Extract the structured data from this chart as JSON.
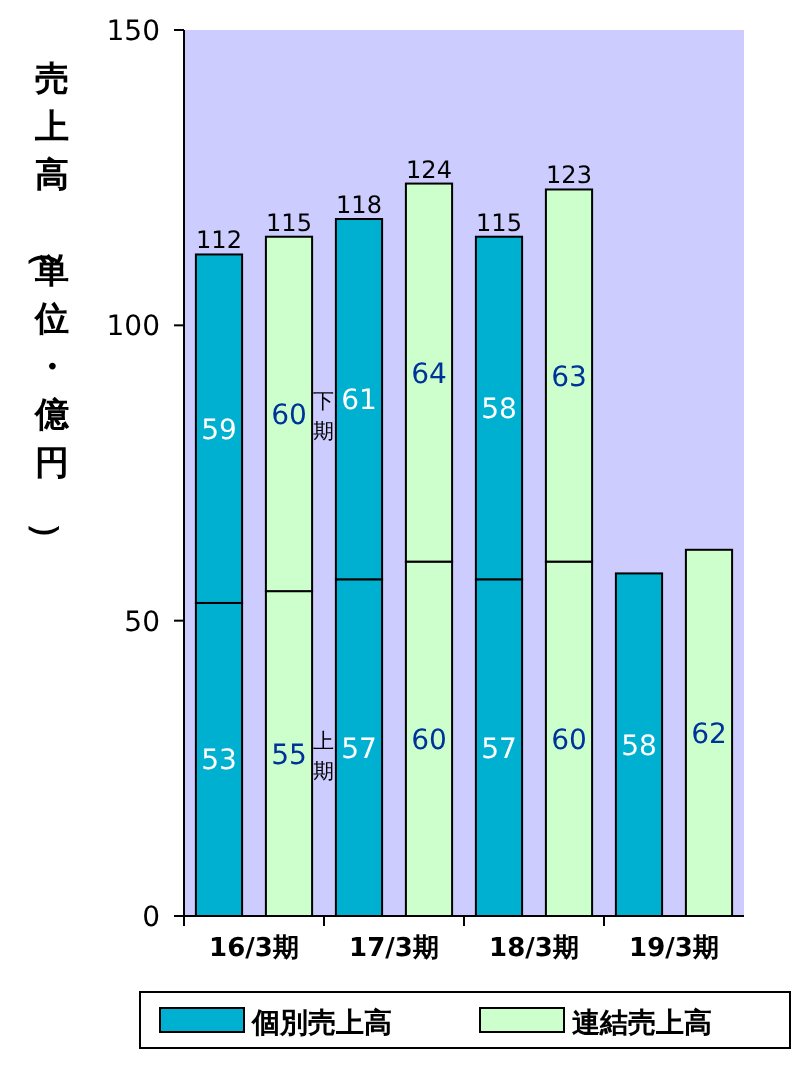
{
  "chart_data": {
    "type": "bar",
    "ylabel": "売上高（単位・億円）",
    "categories": [
      "16/3期",
      null,
      "17/3期",
      null,
      "18/3期",
      null,
      "19/3期",
      null
    ],
    "stacked": true,
    "series": [
      {
        "name": "個別売上高",
        "color": "#00b0d0",
        "values": [
          53,
          null,
          57,
          null,
          57,
          null,
          58,
          null
        ]
      },
      {
        "color": "#00b0d0",
        "values": [
          59,
          null,
          61,
          null,
          58,
          null,
          null,
          null
        ]
      },
      {
        "name": "連結売上高",
        "color": "#ccffcc",
        "values": [
          null,
          55,
          null,
          60,
          null,
          60,
          null,
          62
        ]
      },
      {
        "color": "#ccffcc",
        "values": [
          null,
          60,
          null,
          64,
          null,
          63,
          null,
          null
        ]
      }
    ],
    "totals": [
      "112",
      "115",
      "118",
      "124",
      "115",
      "123",
      null,
      null
    ],
    "data_labels": true,
    "annotations": [
      "下期",
      "上期"
    ],
    "ylim": [
      0,
      150
    ],
    "yticks": [
      0,
      50,
      100,
      150
    ],
    "grid": false,
    "legend": "bottom"
  }
}
